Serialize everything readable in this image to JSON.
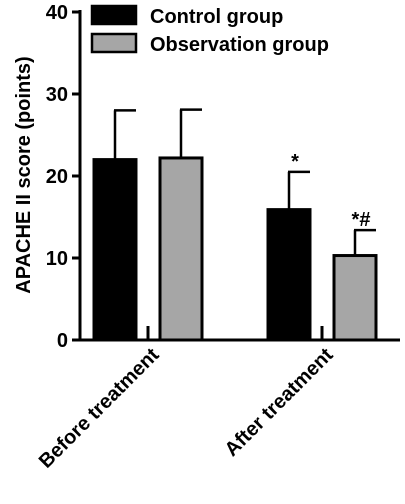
{
  "chart_data": {
    "type": "bar",
    "title": "",
    "xlabel": "",
    "ylabel": "APACHE II score (points)",
    "ylim": [
      0,
      40
    ],
    "yticks": [
      0,
      10,
      20,
      30,
      40
    ],
    "categories": [
      "Before treatment",
      "After treatment"
    ],
    "series": [
      {
        "name": "Control group",
        "color": "#000000",
        "values": [
          22.0,
          15.9
        ],
        "error": [
          6.0,
          4.6
        ],
        "annotations": [
          "",
          "*"
        ]
      },
      {
        "name": "Observation group",
        "color": "#a6a6a6",
        "values": [
          22.2,
          10.3
        ],
        "error": [
          5.9,
          3.1
        ],
        "annotations": [
          "",
          "*#"
        ]
      }
    ],
    "legend": "top-left",
    "grid": false
  }
}
